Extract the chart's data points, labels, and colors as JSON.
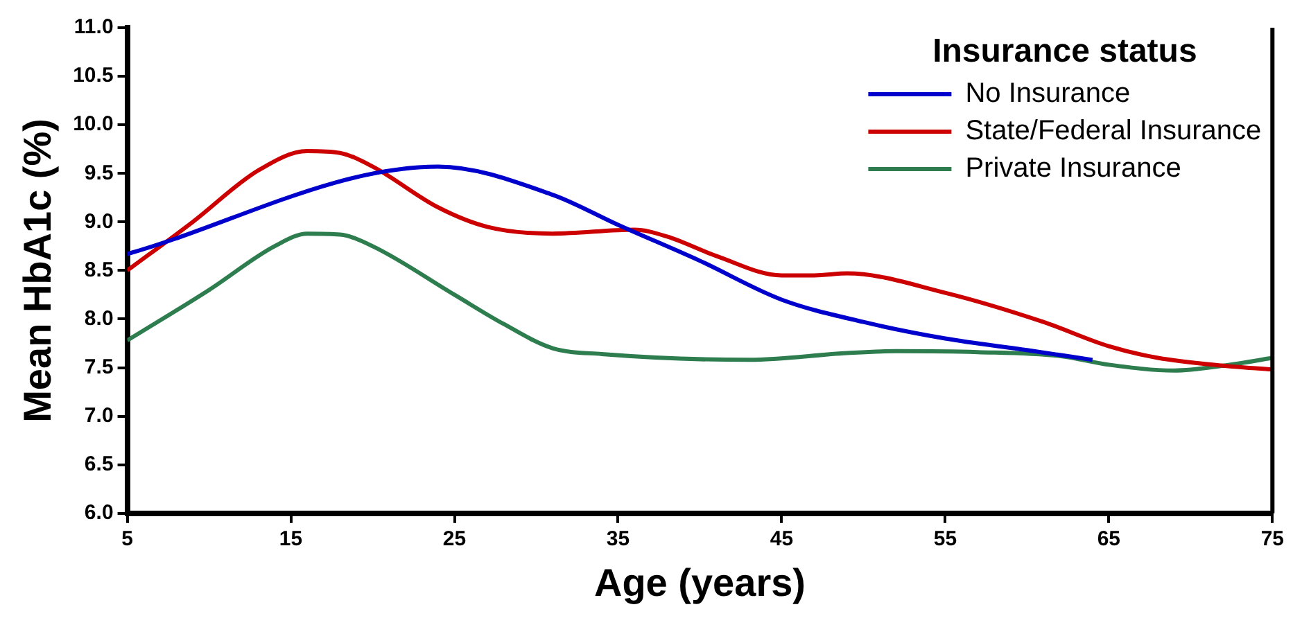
{
  "chart_data": {
    "type": "line",
    "xlabel": "Age (years)",
    "ylabel": "Mean HbA1c (%)",
    "legend_title": "Insurance status",
    "legend": "top right",
    "grid": false,
    "marker": "none",
    "line_style": "solid",
    "xlim": [
      5,
      75
    ],
    "xticks": [
      5,
      15,
      25,
      35,
      45,
      55,
      65,
      75
    ],
    "ylim": [
      6,
      11
    ],
    "yticks": [
      {
        "value": 6,
        "label": "6.0"
      },
      {
        "value": 6.5,
        "label": "6.5"
      },
      {
        "value": 7,
        "label": "7.0"
      },
      {
        "value": 7.5,
        "label": "7.5"
      },
      {
        "value": 8,
        "label": "8.0"
      },
      {
        "value": 8.5,
        "label": "8.5"
      },
      {
        "value": 9,
        "label": "9.0"
      },
      {
        "value": 9.5,
        "label": "9.5"
      },
      {
        "value": 10,
        "label": "10.0"
      },
      {
        "value": 10.5,
        "label": "10.5"
      },
      {
        "value": 11,
        "label": "11.0"
      }
    ],
    "series": [
      {
        "name": "No Insurance",
        "color": "#0000cc",
        "x": [
          5,
          24,
          31,
          35,
          40,
          45,
          50,
          55,
          60,
          64
        ],
        "values": [
          8.67,
          9.57,
          9.28,
          8.97,
          8.6,
          8.2,
          7.97,
          7.8,
          7.68,
          7.58
        ]
      },
      {
        "name": "State/Federal Insurance",
        "color": "#cc0000",
        "x": [
          5,
          9,
          13,
          16,
          18,
          20,
          24,
          27,
          31,
          36,
          38,
          41,
          45,
          47,
          49,
          55,
          61,
          65,
          68,
          72,
          75
        ],
        "values": [
          8.5,
          9.0,
          9.53,
          9.73,
          9.71,
          9.57,
          9.15,
          8.95,
          8.88,
          8.92,
          8.85,
          8.65,
          8.45,
          8.45,
          8.47,
          8.27,
          7.97,
          7.72,
          7.6,
          7.52,
          7.48
        ]
      },
      {
        "name": "Private Insurance",
        "color": "#2e7d4f",
        "x": [
          5,
          10,
          14,
          16,
          18,
          20,
          25,
          28,
          31,
          34,
          43,
          49,
          52,
          57,
          62,
          65,
          69,
          72,
          75
        ],
        "values": [
          7.78,
          8.3,
          8.75,
          8.88,
          8.87,
          8.75,
          8.25,
          7.95,
          7.7,
          7.64,
          7.58,
          7.65,
          7.67,
          7.66,
          7.62,
          7.53,
          7.47,
          7.52,
          7.6
        ]
      }
    ]
  }
}
